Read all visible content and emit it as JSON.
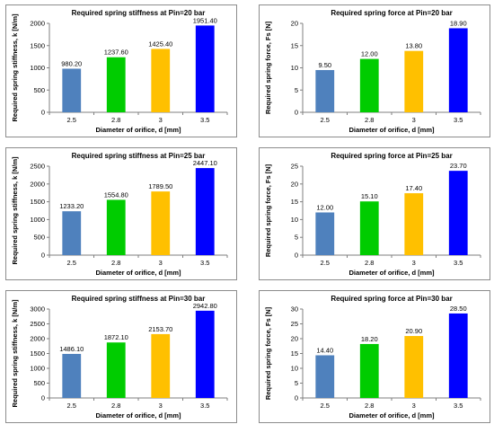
{
  "colors": {
    "bar1": "#4f81bd",
    "bar2": "#00cc00",
    "bar3": "#ffc000",
    "bar4": "#0000ff"
  },
  "chart_data": [
    {
      "type": "bar",
      "title": "Required spring stiffness at Pin=20 bar",
      "xlabel": "Diameter of orifice, d [mm]",
      "ylabel": "Required spring stiffness, k [N/m]",
      "categories": [
        "2.5",
        "2.8",
        "3",
        "3.5"
      ],
      "values": [
        980.2,
        1237.6,
        1425.4,
        1951.4
      ],
      "value_labels": [
        "980.20",
        "1237.60",
        "1425.40",
        "1951.40"
      ],
      "ylim": [
        0,
        2000
      ],
      "yticks": [
        "0",
        "500",
        "1000",
        "1500",
        "2000"
      ],
      "ytick_values": [
        0,
        500,
        1000,
        1500,
        2000
      ],
      "grid": false
    },
    {
      "type": "bar",
      "title": "Required spring force at Pin=20 bar",
      "xlabel": "Diameter of orifice, d [mm]",
      "ylabel": "Required spring force, Fs [N]",
      "categories": [
        "2.5",
        "2.8",
        "3",
        "3.5"
      ],
      "values": [
        9.5,
        12.0,
        13.8,
        18.9
      ],
      "value_labels": [
        "9.50",
        "12.00",
        "13.80",
        "18.90"
      ],
      "ylim": [
        0,
        20
      ],
      "yticks": [
        "0",
        "5",
        "10",
        "15",
        "20"
      ],
      "ytick_values": [
        0,
        5,
        10,
        15,
        20
      ],
      "grid": false
    },
    {
      "type": "bar",
      "title": "Required spring stiffness at Pin=25 bar",
      "xlabel": "Diameter of orifice, d [mm]",
      "ylabel": "Required spring stiffness, k [N/m]",
      "categories": [
        "2.5",
        "2.8",
        "3",
        "3.5"
      ],
      "values": [
        1233.2,
        1554.8,
        1789.5,
        2447.1
      ],
      "value_labels": [
        "1233.20",
        "1554.80",
        "1789.50",
        "2447.10"
      ],
      "ylim": [
        0,
        2500
      ],
      "yticks": [
        "0",
        "500",
        "1000",
        "1500",
        "2000",
        "2500"
      ],
      "ytick_values": [
        0,
        500,
        1000,
        1500,
        2000,
        2500
      ],
      "grid": false
    },
    {
      "type": "bar",
      "title": "Required spring force at Pin=25 bar",
      "xlabel": "Diameter of orifice, d [mm]",
      "ylabel": "Required spring force, Fs [N]",
      "categories": [
        "2.5",
        "2.8",
        "3",
        "3.5"
      ],
      "values": [
        12.0,
        15.1,
        17.4,
        23.7
      ],
      "value_labels": [
        "12.00",
        "15.10",
        "17.40",
        "23.70"
      ],
      "ylim": [
        0,
        25
      ],
      "yticks": [
        "0",
        "5",
        "10",
        "15",
        "20",
        "25"
      ],
      "ytick_values": [
        0,
        5,
        10,
        15,
        20,
        25
      ],
      "grid": false
    },
    {
      "type": "bar",
      "title": "Required spring stiffness at Pin=30 bar",
      "xlabel": "Diameter of orifice, d [mm]",
      "ylabel": "Required spring stiffness, k [N/m]",
      "categories": [
        "2.5",
        "2.8",
        "3",
        "3.5"
      ],
      "values": [
        1486.1,
        1872.1,
        2153.7,
        2942.8
      ],
      "value_labels": [
        "1486.10",
        "1872.10",
        "2153.70",
        "2942.80"
      ],
      "ylim": [
        0,
        3000
      ],
      "yticks": [
        "0",
        "500",
        "1000",
        "1500",
        "2000",
        "2500",
        "3000"
      ],
      "ytick_values": [
        0,
        500,
        1000,
        1500,
        2000,
        2500,
        3000
      ],
      "grid": false
    },
    {
      "type": "bar",
      "title": "Required spring force at Pin=30 bar",
      "xlabel": "Diameter of orifice, d [mm]",
      "ylabel": "Required spring force, Fs [N]",
      "categories": [
        "2.5",
        "2.8",
        "3",
        "3.5"
      ],
      "values": [
        14.4,
        18.2,
        20.9,
        28.5
      ],
      "value_labels": [
        "14.40",
        "18.20",
        "20.90",
        "28.50"
      ],
      "ylim": [
        0,
        30
      ],
      "yticks": [
        "0",
        "5",
        "10",
        "15",
        "20",
        "25",
        "30"
      ],
      "ytick_values": [
        0,
        5,
        10,
        15,
        20,
        25,
        30
      ],
      "grid": false
    }
  ]
}
